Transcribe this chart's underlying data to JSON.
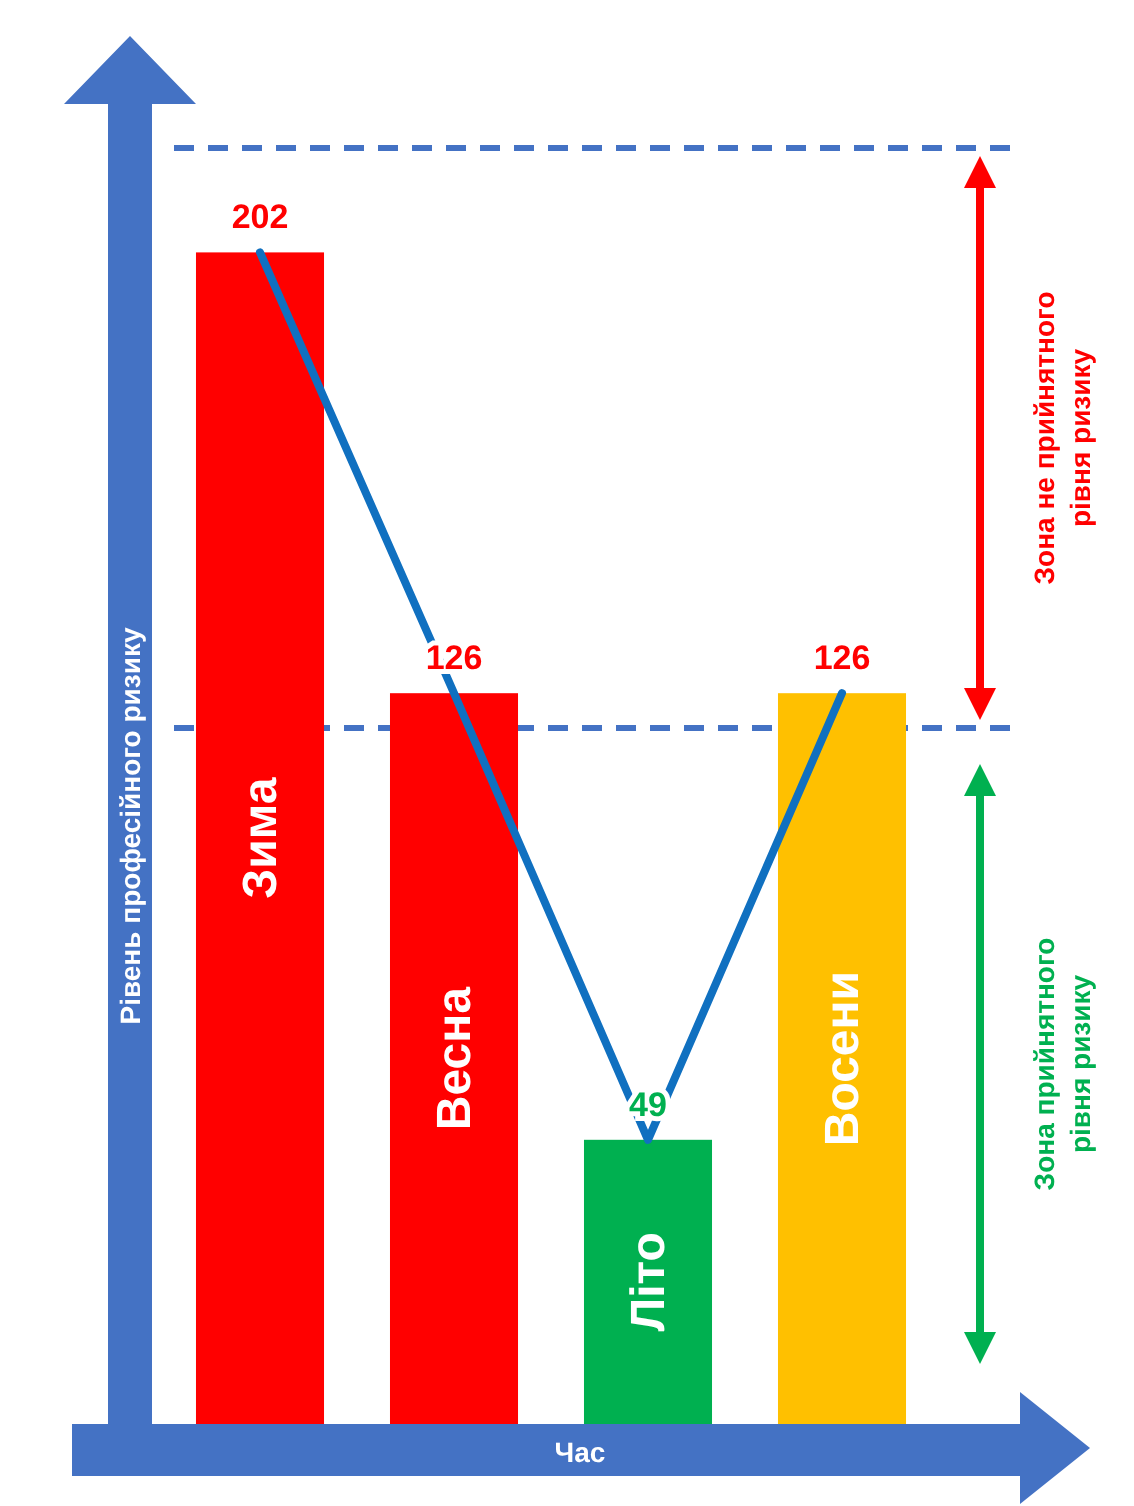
{
  "chart_data": {
    "type": "bar",
    "categories": [
      "Зима",
      "Весна",
      "Літо",
      "Восени"
    ],
    "xlabel": "Час",
    "ylabel": "Рівень професійного ризику",
    "ylim": [
      0,
      220
    ],
    "series": [
      {
        "colors": [
          "#ff0000",
          "#ff0000",
          "#00b050",
          "#ffc000"
        ],
        "values": [
          202,
          126,
          49,
          126
        ],
        "value_labels": [
          "202",
          "126",
          "49",
          "126"
        ]
      },
      {
        "type": "line",
        "color": "#1070c0",
        "values": [
          202,
          126,
          49,
          126
        ]
      }
    ],
    "ref_lines": [
      {
        "axis": "y",
        "value": 220,
        "color": "#4472c4",
        "line_style": "dashed"
      },
      {
        "axis": "y",
        "value": 120,
        "color": "#4472c4",
        "line_style": "dashed"
      }
    ],
    "annotations": [
      "Зона не прийнятного рівня ризику",
      "Зона прийнятного рівня ризику"
    ]
  }
}
